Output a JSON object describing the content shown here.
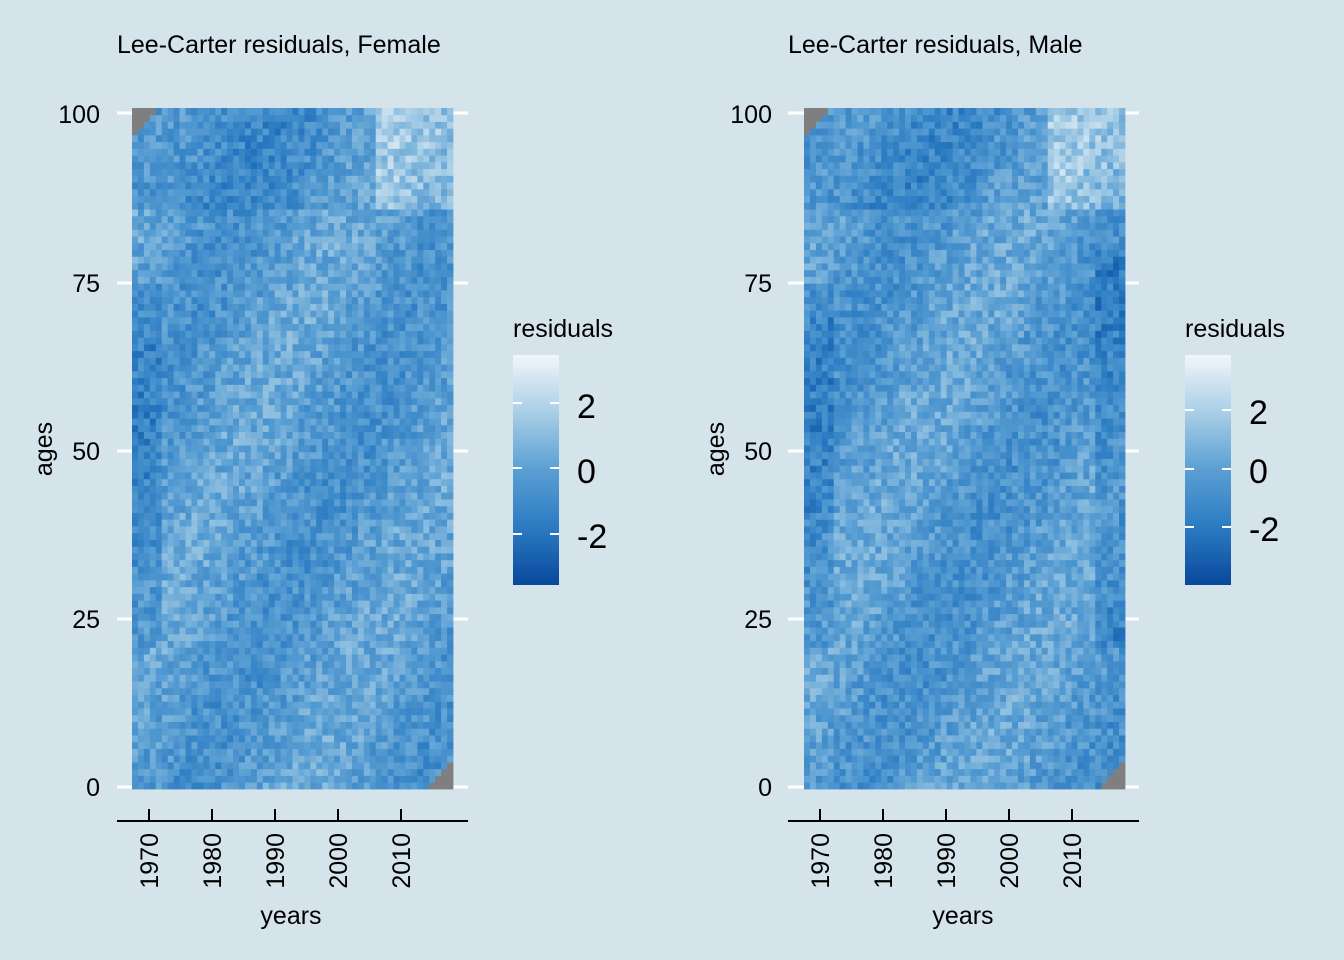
{
  "chart_data": [
    {
      "type": "heatmap",
      "title": "Lee-Carter residuals, Female",
      "xlabel": "years",
      "ylabel": "ages",
      "x_range": [
        1965,
        2018
      ],
      "y_range": [
        0,
        100
      ],
      "x_ticks": [
        "1970",
        "1980",
        "1990",
        "2000",
        "2010"
      ],
      "y_ticks": [
        "0",
        "25",
        "50",
        "75",
        "100"
      ],
      "legend": {
        "title": "residuals",
        "ticks": [
          "2",
          "0",
          "-2"
        ],
        "range": [
          -3.5,
          3.5
        ],
        "placement": "right"
      },
      "missing_cells": "bottom-right and top-left corners (gray)",
      "grid": true
    },
    {
      "type": "heatmap",
      "title": "Lee-Carter residuals, Male",
      "xlabel": "years",
      "ylabel": "ages",
      "x_range": [
        1965,
        2018
      ],
      "y_range": [
        0,
        100
      ],
      "x_ticks": [
        "1970",
        "1980",
        "1990",
        "2000",
        "2010"
      ],
      "y_ticks": [
        "0",
        "25",
        "50",
        "75",
        "100"
      ],
      "legend": {
        "title": "residuals",
        "ticks": [
          "2",
          "0",
          "-2"
        ],
        "range": [
          -3.7,
          3.7
        ],
        "placement": "right"
      },
      "missing_cells": "bottom-right and top-left corners (gray)",
      "grid": true
    }
  ],
  "colors": {
    "background": "#d5e4eb",
    "scale_low": "#08489c",
    "scale_mid": "#5a9fd3",
    "scale_high": "#f1f6fc",
    "missing": "#7f7f7f",
    "gridline": "#ffffff"
  }
}
